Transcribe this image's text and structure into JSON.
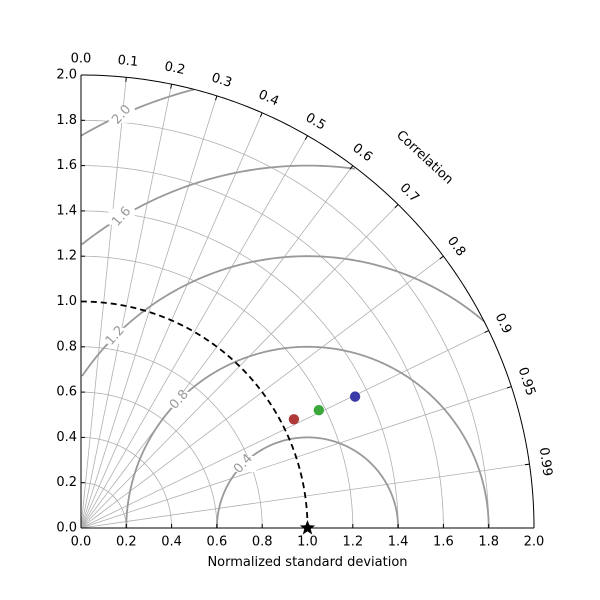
{
  "chart_data": {
    "type": "scatter",
    "subtype": "taylor-diagram",
    "xlabel": "Normalized standard deviation",
    "corr_title": "Correlation",
    "xlim": [
      0,
      2
    ],
    "ylim": [
      0,
      2
    ],
    "x_ticks": [
      "0.0",
      "0.2",
      "0.4",
      "0.6",
      "0.8",
      "1.0",
      "1.2",
      "1.4",
      "1.6",
      "1.8",
      "2.0"
    ],
    "y_ticks": [
      "0.0",
      "0.2",
      "0.4",
      "0.6",
      "0.8",
      "1.0",
      "1.2",
      "1.4",
      "1.6",
      "1.8",
      "2.0"
    ],
    "correlation_ticks": [
      {
        "value": 0.0,
        "label": "0.0"
      },
      {
        "value": 0.1,
        "label": "0.1"
      },
      {
        "value": 0.2,
        "label": "0.2"
      },
      {
        "value": 0.3,
        "label": "0.3"
      },
      {
        "value": 0.4,
        "label": "0.4"
      },
      {
        "value": 0.5,
        "label": "0.5"
      },
      {
        "value": 0.6,
        "label": "0.6"
      },
      {
        "value": 0.7,
        "label": "0.7"
      },
      {
        "value": 0.8,
        "label": "0.8"
      },
      {
        "value": 0.9,
        "label": "0.9"
      },
      {
        "value": 0.95,
        "label": "0.95"
      },
      {
        "value": 0.99,
        "label": "0.99"
      }
    ],
    "std_grid": [
      0.2,
      0.4,
      0.6,
      0.8,
      1.0,
      1.2,
      1.4,
      1.6,
      1.8
    ],
    "rms_contours": [
      {
        "value": 0.4,
        "label": "0.4"
      },
      {
        "value": 0.8,
        "label": "0.8"
      },
      {
        "value": 1.2,
        "label": "1.2"
      },
      {
        "value": 1.6,
        "label": "1.6"
      },
      {
        "value": 2.0,
        "label": "2.0"
      }
    ],
    "reference": {
      "std": 1.0
    },
    "points": [
      {
        "x": 0.94,
        "y": 0.48,
        "color": "#b03a3a"
      },
      {
        "x": 1.05,
        "y": 0.52,
        "color": "#3aa83a"
      },
      {
        "x": 1.21,
        "y": 0.58,
        "color": "#3a3aa8"
      }
    ],
    "colors": {
      "grid": "#b0b0b0",
      "rms": "#999999",
      "reference": "#000000",
      "frame": "#000000"
    }
  }
}
